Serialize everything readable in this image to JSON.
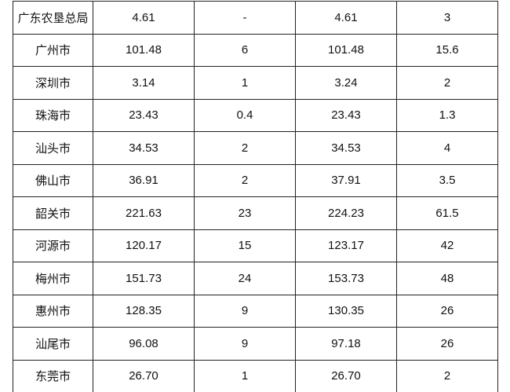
{
  "table": {
    "rows": [
      [
        "广东农垦总局",
        "4.61",
        "-",
        "4.61",
        "3"
      ],
      [
        "广州市",
        "101.48",
        "6",
        "101.48",
        "15.6"
      ],
      [
        "深圳市",
        "3.14",
        "1",
        "3.24",
        "2"
      ],
      [
        "珠海市",
        "23.43",
        "0.4",
        "23.43",
        "1.3"
      ],
      [
        "汕头市",
        "34.53",
        "2",
        "34.53",
        "4"
      ],
      [
        "佛山市",
        "36.91",
        "2",
        "37.91",
        "3.5"
      ],
      [
        "韶关市",
        "221.63",
        "23",
        "224.23",
        "61.5"
      ],
      [
        "河源市",
        "120.17",
        "15",
        "123.17",
        "42"
      ],
      [
        "梅州市",
        "151.73",
        "24",
        "153.73",
        "48"
      ],
      [
        "惠州市",
        "128.35",
        "9",
        "130.35",
        "26"
      ],
      [
        "汕尾市",
        "96.08",
        "9",
        "97.18",
        "26"
      ],
      [
        "东莞市",
        "26.70",
        "1",
        "26.70",
        "2"
      ]
    ]
  }
}
